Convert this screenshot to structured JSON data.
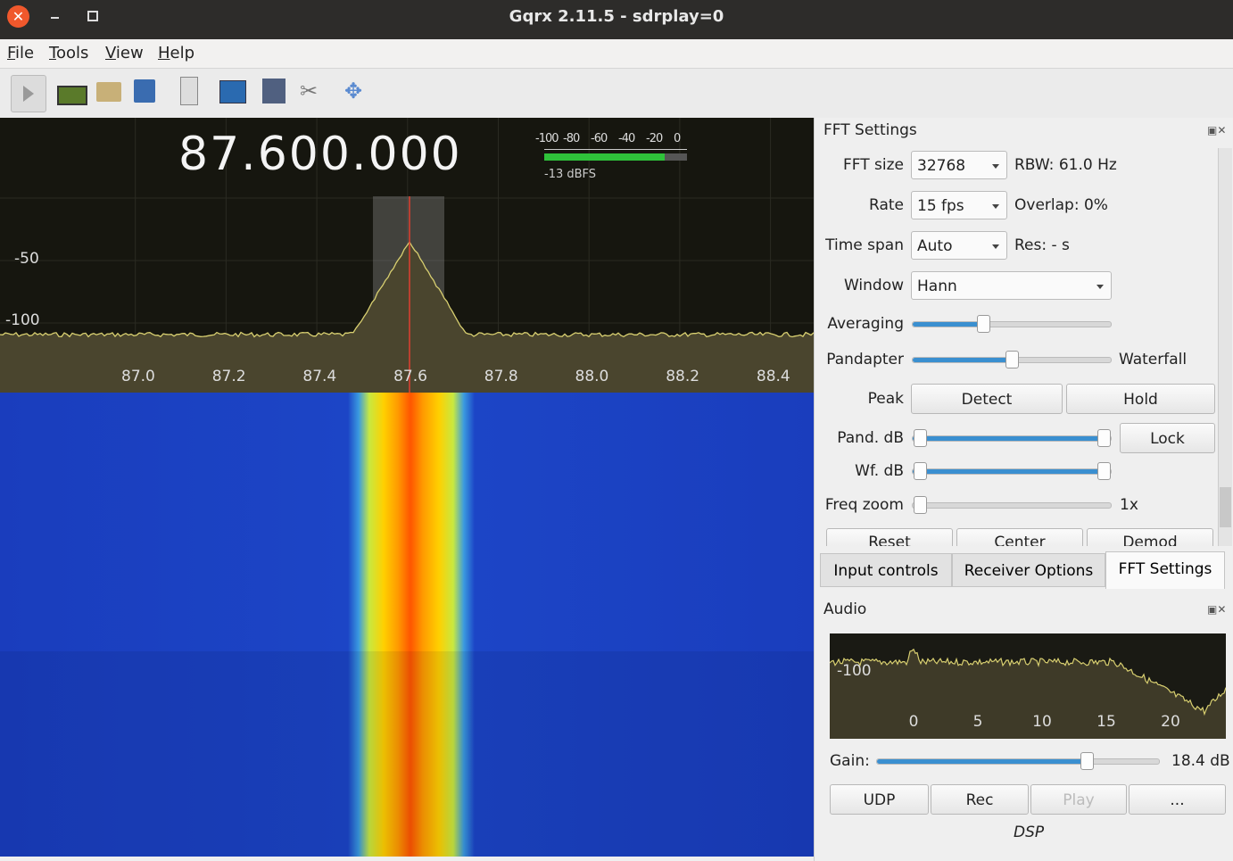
{
  "window": {
    "title": "Gqrx 2.11.5 - sdrplay=0"
  },
  "menu": [
    "File",
    "Tools",
    "View",
    "Help"
  ],
  "receiver": {
    "frequency": "87.600.000",
    "meter": {
      "scale": [
        "-100",
        "-80",
        "-60",
        "-40",
        "-20",
        "0"
      ],
      "level": "-13 dBFS"
    },
    "plot": {
      "y_labels": [
        "-50",
        "-100"
      ],
      "x_labels": [
        "87.0",
        "87.2",
        "87.4",
        "87.6",
        "87.8",
        "88.0",
        "88.2",
        "88.4"
      ]
    }
  },
  "fft_settings": {
    "title": "FFT Settings",
    "fft_size": {
      "label": "FFT size",
      "value": "32768",
      "info": "RBW: 61.0 Hz"
    },
    "rate": {
      "label": "Rate",
      "value": "15 fps",
      "info": "Overlap: 0%"
    },
    "time_span": {
      "label": "Time span",
      "value": "Auto",
      "info": "Res: - s"
    },
    "window": {
      "label": "Window",
      "value": "Hann"
    },
    "averaging": {
      "label": "Averaging"
    },
    "pandapter": {
      "label": "Pandapter",
      "right": "Waterfall"
    },
    "peak": {
      "label": "Peak",
      "buttons": [
        "Detect",
        "Hold"
      ]
    },
    "pand_db": {
      "label": "Pand. dB",
      "button": "Lock"
    },
    "wf_db": {
      "label": "Wf. dB"
    },
    "freq_zoom": {
      "label": "Freq zoom",
      "value": "1x"
    },
    "buttons": [
      "Reset",
      "Center",
      "Demod"
    ]
  },
  "tabs": [
    "Input controls",
    "Receiver Options",
    "FFT Settings"
  ],
  "audio": {
    "title": "Audio",
    "y_label": "-100",
    "x_labels": [
      "0",
      "5",
      "10",
      "15",
      "20"
    ],
    "gain": {
      "label": "Gain:",
      "value": "18.4 dB"
    },
    "buttons": [
      "UDP",
      "Rec",
      "Play",
      "..."
    ],
    "dsp": "DSP"
  }
}
